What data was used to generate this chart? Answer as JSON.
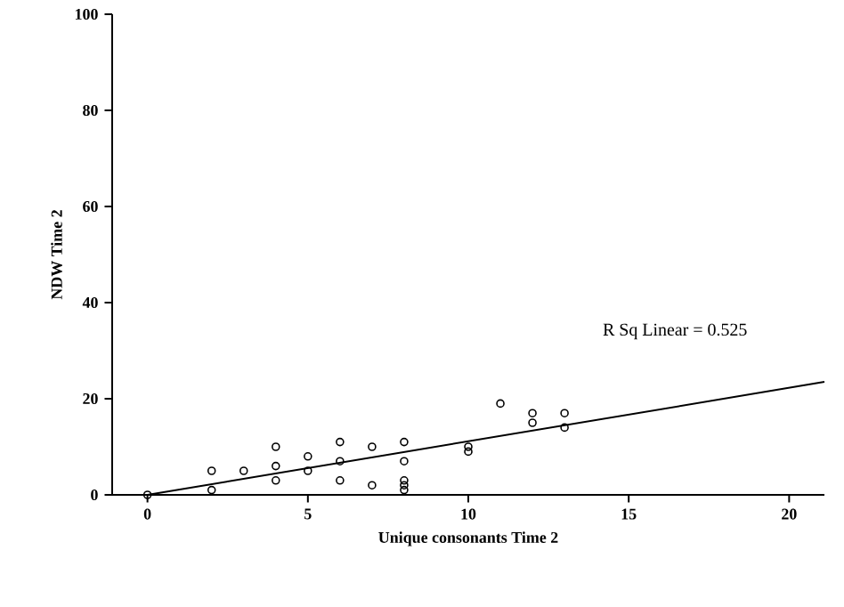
{
  "chart_data": {
    "type": "scatter",
    "xlabel": "Unique consonants Time 2",
    "ylabel": "NDW Time 2",
    "grid": false,
    "xlim": [
      -1.1,
      21.1
    ],
    "ylim": [
      0,
      100
    ],
    "xticks": [
      0,
      5,
      10,
      15,
      20
    ],
    "yticks": [
      0,
      20,
      40,
      60,
      80,
      100
    ],
    "annotations": [
      "R Sq Linear = 0.525"
    ],
    "series": [
      {
        "marker": "circle",
        "color": "#000000",
        "x": [
          0,
          2,
          2,
          3,
          4,
          4,
          4,
          5,
          5,
          6,
          6,
          6,
          7,
          7,
          8,
          8,
          8,
          8,
          8,
          10,
          10,
          11,
          12,
          12,
          13,
          13
        ],
        "values": [
          0,
          5,
          1,
          5,
          10,
          6,
          3,
          8,
          5,
          11,
          7,
          3,
          10,
          2,
          11,
          7,
          3,
          2,
          1,
          10,
          9,
          19,
          17,
          15,
          17,
          14
        ]
      },
      {
        "type": "line",
        "color": "#000000",
        "x": [
          0,
          21.1
        ],
        "values": [
          0,
          23.5
        ]
      }
    ]
  }
}
